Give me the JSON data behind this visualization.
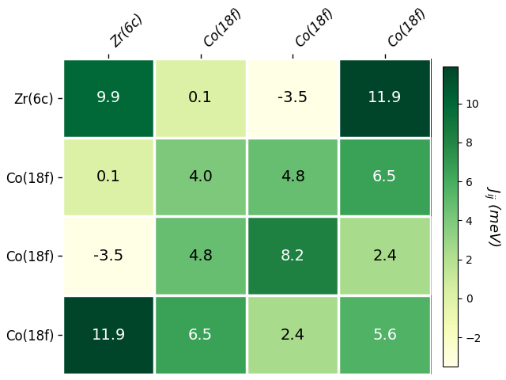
{
  "labels": [
    "Zr(6c)",
    "Co(18f)",
    "Co(18f)",
    "Co(18f)"
  ],
  "values": [
    [
      9.9,
      0.1,
      -3.5,
      11.9
    ],
    [
      0.1,
      4.0,
      4.8,
      6.5
    ],
    [
      -3.5,
      4.8,
      8.2,
      2.4
    ],
    [
      11.9,
      6.5,
      2.4,
      5.6
    ]
  ],
  "vmin": -3.5,
  "vmax": 11.9,
  "cmap": "YlGn",
  "colorbar_label": "$J_{ij}$ (meV)",
  "colorbar_ticks": [
    -2,
    0,
    2,
    4,
    6,
    8,
    10
  ],
  "figsize": [
    6.4,
    4.8
  ],
  "dpi": 100,
  "cell_fontsize": 14,
  "label_fontsize": 12,
  "cbar_label_fontsize": 13
}
